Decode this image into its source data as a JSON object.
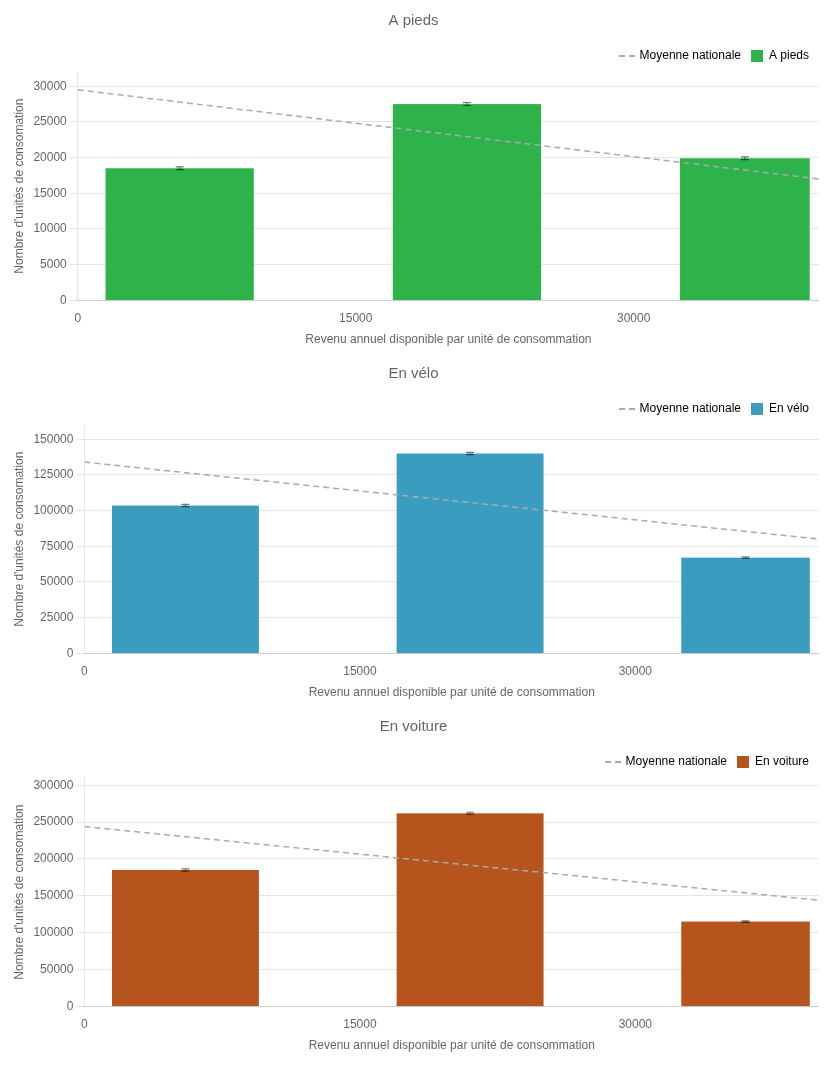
{
  "chart_data": [
    {
      "type": "bar",
      "title": "A pieds",
      "xlabel": "Revenu annuel disponible par unité de consommation",
      "ylabel": "Nombre d'unités de consomation",
      "xlim": [
        0,
        40000
      ],
      "xticks": [
        0,
        15000,
        30000
      ],
      "ylim": [
        0,
        32000
      ],
      "yticks": [
        0,
        5000,
        10000,
        15000,
        20000,
        25000,
        30000
      ],
      "grid": "y",
      "legend": "upper right",
      "series": [
        {
          "name": "Moyenne nationale",
          "type": "line",
          "line_style": "dashed",
          "color": "#aaaaaa",
          "x": [
            0,
            40000
          ],
          "values": [
            29500,
            17000
          ]
        },
        {
          "name": "A pieds",
          "type": "bar",
          "color": "#2db34a",
          "x": [
            5500,
            21000,
            36000
          ],
          "widths": [
            8000,
            8000,
            7000
          ],
          "values": [
            18500,
            27500,
            19900
          ],
          "errors": [
            200,
            200,
            200
          ]
        }
      ]
    },
    {
      "type": "bar",
      "title": "En vélo",
      "xlabel": "Revenu annuel disponible par unité de consommation",
      "ylabel": "Nombre d'unités de consomation",
      "xlim": [
        0,
        40000
      ],
      "xticks": [
        0,
        15000,
        30000
      ],
      "ylim": [
        0,
        160000
      ],
      "yticks": [
        0,
        25000,
        50000,
        75000,
        100000,
        125000,
        150000
      ],
      "grid": "y",
      "legend": "upper right",
      "series": [
        {
          "name": "Moyenne nationale",
          "type": "line",
          "line_style": "dashed",
          "color": "#aaaaaa",
          "x": [
            0,
            40000
          ],
          "values": [
            134000,
            80000
          ]
        },
        {
          "name": "En vélo",
          "type": "bar",
          "color": "#3a9dbf",
          "x": [
            5500,
            21000,
            36000
          ],
          "widths": [
            8000,
            8000,
            7000
          ],
          "values": [
            103500,
            140000,
            67000
          ],
          "errors": [
            800,
            800,
            600
          ]
        }
      ]
    },
    {
      "type": "bar",
      "title": "En voiture",
      "xlabel": "Revenu annuel disponible par unité de consommation",
      "ylabel": "Nombre d'unités de consomation",
      "xlim": [
        0,
        40000
      ],
      "xticks": [
        0,
        15000,
        30000
      ],
      "ylim": [
        0,
        310000
      ],
      "yticks": [
        0,
        50000,
        100000,
        150000,
        200000,
        250000,
        300000
      ],
      "grid": "y",
      "legend": "upper right",
      "series": [
        {
          "name": "Moyenne nationale",
          "type": "line",
          "line_style": "dashed",
          "color": "#aaaaaa",
          "x": [
            0,
            40000
          ],
          "values": [
            244000,
            144000
          ]
        },
        {
          "name": "En voiture",
          "type": "bar",
          "color": "#b5541c",
          "x": [
            5500,
            21000,
            36000
          ],
          "widths": [
            8000,
            8000,
            7000
          ],
          "values": [
            185000,
            262000,
            115000
          ],
          "errors": [
            1500,
            1500,
            1000
          ]
        }
      ]
    }
  ]
}
